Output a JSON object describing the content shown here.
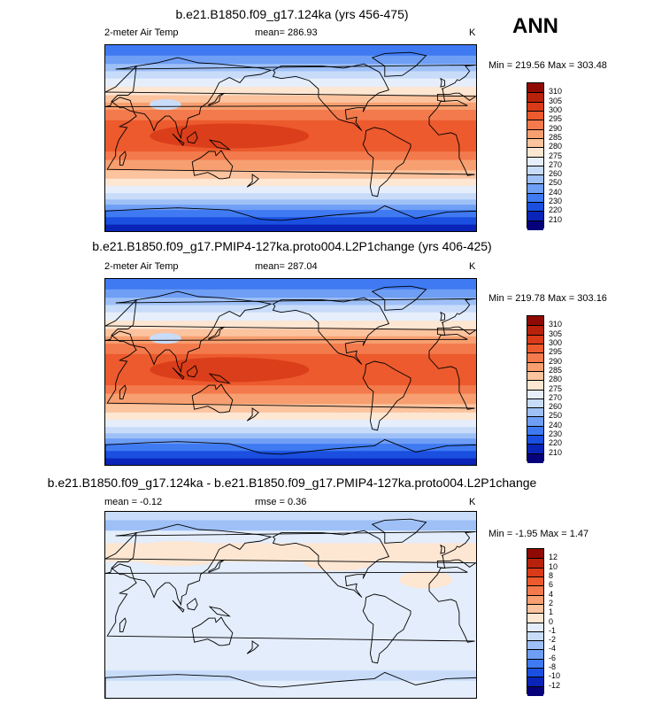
{
  "page": {
    "label": "ANN"
  },
  "palettes": {
    "temp": [
      "#06007a",
      "#0a24b8",
      "#1a4fe0",
      "#3f7af2",
      "#6f9ef5",
      "#9ec0f7",
      "#c8dcfa",
      "#e6eefc",
      "#fde6d2",
      "#fbc39e",
      "#f79f70",
      "#f37a4c",
      "#ec5a2d",
      "#d93b18",
      "#b8220c",
      "#8f0a04"
    ],
    "diff": [
      "#06007a",
      "#0a24b8",
      "#1a4fe0",
      "#3f7af2",
      "#6f9ef5",
      "#9ec0f7",
      "#c8dcfa",
      "#e4edfb",
      "#fde6d2",
      "#fbc39e",
      "#f79f70",
      "#f37a4c",
      "#ec5a2d",
      "#d93b18",
      "#b8220c",
      "#8f0a04"
    ]
  },
  "chart_data": [
    {
      "type": "heatmap",
      "title": "b.e21.B1850.f09_g17.124ka (yrs 456-475)",
      "variable": "2-meter Air Temp",
      "mean_text": "mean= 286.93",
      "units": "K",
      "minmax_text": "Min = 219.56 Max = 303.48",
      "stats": {
        "mean": 286.93,
        "min": 219.56,
        "max": 303.48
      },
      "colorbar_levels": [
        "310",
        "305",
        "300",
        "295",
        "290",
        "285",
        "280",
        "275",
        "270",
        "260",
        "250",
        "240",
        "230",
        "220",
        "210"
      ],
      "palette": "temp",
      "variant": 0
    },
    {
      "type": "heatmap",
      "title": "b.e21.B1850.f09_g17.PMIP4-127ka.proto004.L2P1change (yrs 406-425)",
      "variable": "2-meter Air Temp",
      "mean_text": "mean= 287.04",
      "units": "K",
      "minmax_text": "Min = 219.78 Max = 303.16",
      "stats": {
        "mean": 287.04,
        "min": 219.78,
        "max": 303.16
      },
      "colorbar_levels": [
        "310",
        "305",
        "300",
        "295",
        "290",
        "285",
        "280",
        "275",
        "270",
        "260",
        "250",
        "240",
        "230",
        "220",
        "210"
      ],
      "palette": "temp",
      "variant": 1
    },
    {
      "type": "heatmap",
      "title": "b.e21.B1850.f09_g17.124ka - b.e21.B1850.f09_g17.PMIP4-127ka.proto004.L2P1change",
      "mean_text": "mean =  -0.12",
      "rmse_text": "rmse =   0.36",
      "units": "K",
      "minmax_text": "Min = -1.95 Max =   1.47",
      "stats": {
        "mean": -0.12,
        "rmse": 0.36,
        "min": -1.95,
        "max": 1.47
      },
      "colorbar_levels": [
        "12",
        "10",
        "8",
        "6",
        "4",
        "2",
        "1",
        "0",
        "-1",
        "-2",
        "-4",
        "-6",
        "-8",
        "-10",
        "-12"
      ],
      "palette": "diff",
      "variant": 2
    }
  ]
}
